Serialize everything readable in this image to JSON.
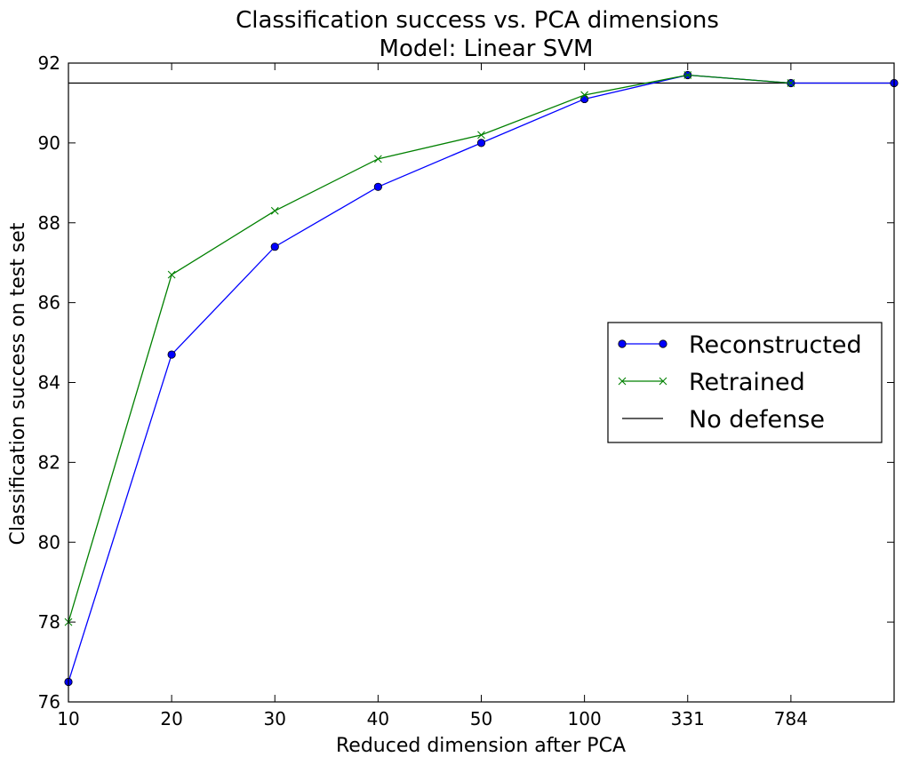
{
  "chart_data": {
    "type": "line",
    "title": "Classification success vs. PCA dimensions",
    "subtitle": "Model: Linear SVM",
    "xlabel": "Reduced dimension after PCA",
    "ylabel": "Classification success on test set",
    "categories": [
      "10",
      "20",
      "30",
      "40",
      "50",
      "100",
      "331",
      "784",
      ""
    ],
    "x_positions": [
      0,
      1,
      2,
      3,
      4,
      5,
      6,
      7,
      8
    ],
    "ylim": [
      76,
      92
    ],
    "yticks": [
      "76",
      "78",
      "80",
      "82",
      "84",
      "86",
      "88",
      "90",
      "92"
    ],
    "series": [
      {
        "name": "Reconstructed",
        "color": "#0000ff",
        "marker": "circle",
        "x": [
          0,
          1,
          2,
          3,
          4,
          5,
          6,
          7,
          8
        ],
        "values": [
          76.5,
          84.7,
          87.4,
          88.9,
          90.0,
          91.1,
          91.7,
          91.5,
          91.5
        ]
      },
      {
        "name": "Retrained",
        "color": "#008000",
        "marker": "x",
        "x": [
          0,
          1,
          2,
          3,
          4,
          5,
          6,
          7
        ],
        "values": [
          78.0,
          86.7,
          88.3,
          89.6,
          90.2,
          91.2,
          91.7,
          91.5
        ]
      }
    ],
    "baseline": {
      "name": "No defense",
      "color": "#000000",
      "value": 91.5
    },
    "legend_position": "center-right"
  }
}
